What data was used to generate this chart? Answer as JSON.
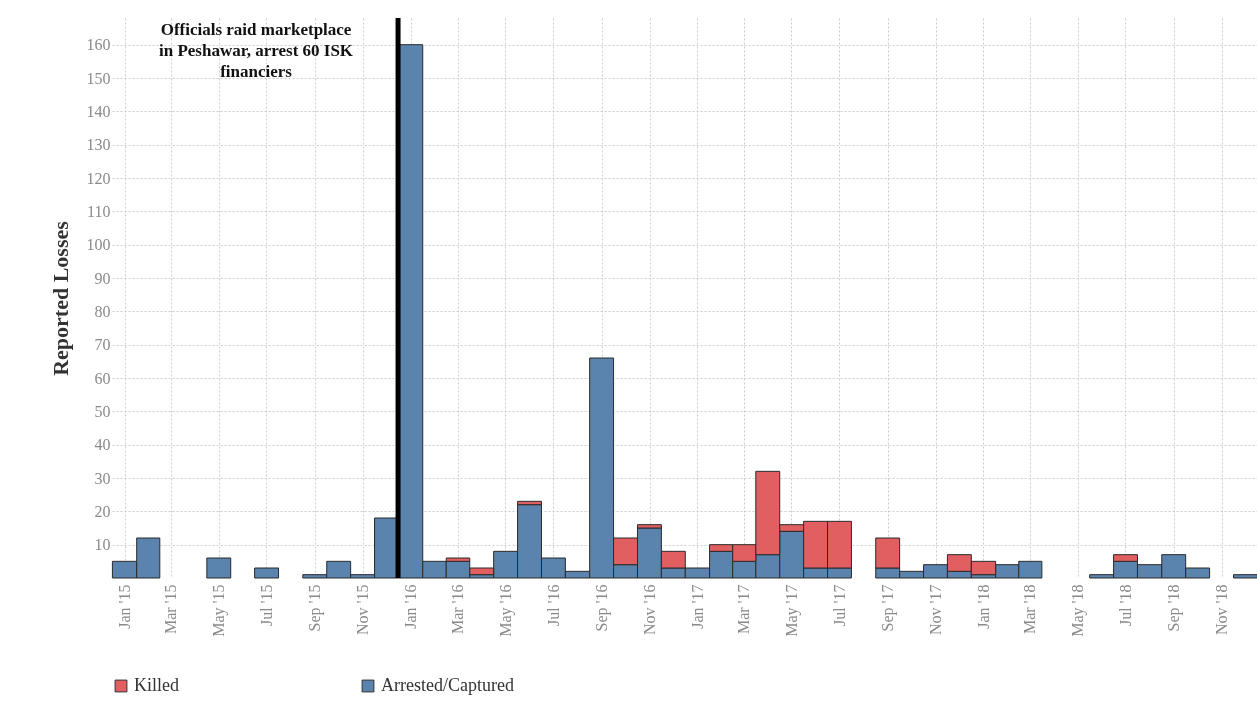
{
  "chart_data": {
    "type": "bar",
    "stacked": true,
    "x": [
      "2015-01",
      "2015-02",
      "2015-03",
      "2015-04",
      "2015-05",
      "2015-06",
      "2015-07",
      "2015-08",
      "2015-09",
      "2015-10",
      "2015-11",
      "2015-12",
      "2016-01",
      "2016-02",
      "2016-03",
      "2016-04",
      "2016-05",
      "2016-06",
      "2016-07",
      "2016-08",
      "2016-09",
      "2016-10",
      "2016-11",
      "2016-12",
      "2017-01",
      "2017-02",
      "2017-03",
      "2017-04",
      "2017-05",
      "2017-06",
      "2017-07",
      "2017-08",
      "2017-09",
      "2017-10",
      "2017-11",
      "2017-12",
      "2018-01",
      "2018-02",
      "2018-03",
      "2018-04",
      "2018-05",
      "2018-06",
      "2018-07",
      "2018-08",
      "2018-09",
      "2018-10",
      "2018-11",
      "2018-12"
    ],
    "series": [
      {
        "name": "Arrested/Captured",
        "color": "#5a83ad",
        "values": [
          5,
          12,
          null,
          null,
          6,
          null,
          3,
          null,
          1,
          5,
          1,
          18,
          160,
          5,
          5,
          1,
          8,
          22,
          6,
          2,
          66,
          4,
          15,
          3,
          3,
          8,
          5,
          7,
          14,
          3,
          3,
          null,
          3,
          2,
          4,
          2,
          1,
          4,
          5,
          null,
          null,
          1,
          5,
          4,
          7,
          3,
          null,
          1
        ]
      },
      {
        "name": "Killed",
        "color": "#e15f61",
        "values": [
          null,
          null,
          null,
          null,
          null,
          null,
          null,
          null,
          null,
          null,
          null,
          null,
          null,
          null,
          1,
          2,
          null,
          1,
          null,
          null,
          null,
          8,
          1,
          5,
          null,
          2,
          5,
          25,
          2,
          14,
          14,
          null,
          9,
          null,
          null,
          5,
          4,
          null,
          null,
          null,
          null,
          null,
          2,
          null,
          null,
          null,
          null,
          null
        ]
      }
    ],
    "ylabel": "Reported Losses",
    "xlim": [
      "2014-12-16",
      "2018-12-16"
    ],
    "xticks": [
      {
        "value": "2015-01",
        "label": "Jan '15"
      },
      {
        "value": "2015-03",
        "label": "Mar '15"
      },
      {
        "value": "2015-05",
        "label": "May '15"
      },
      {
        "value": "2015-07",
        "label": "Jul '15"
      },
      {
        "value": "2015-09",
        "label": "Sep '15"
      },
      {
        "value": "2015-11",
        "label": "Nov '15"
      },
      {
        "value": "2016-01",
        "label": "Jan '16"
      },
      {
        "value": "2016-03",
        "label": "Mar '16"
      },
      {
        "value": "2016-05",
        "label": "May '16"
      },
      {
        "value": "2016-07",
        "label": "Jul '16"
      },
      {
        "value": "2016-09",
        "label": "Sep '16"
      },
      {
        "value": "2016-11",
        "label": "Nov '16"
      },
      {
        "value": "2017-01",
        "label": "Jan '17"
      },
      {
        "value": "2017-03",
        "label": "Mar '17"
      },
      {
        "value": "2017-05",
        "label": "May '17"
      },
      {
        "value": "2017-07",
        "label": "Jul '17"
      },
      {
        "value": "2017-09",
        "label": "Sep '17"
      },
      {
        "value": "2017-11",
        "label": "Nov '17"
      },
      {
        "value": "2018-01",
        "label": "Jan '18"
      },
      {
        "value": "2018-03",
        "label": "Mar '18"
      },
      {
        "value": "2018-05",
        "label": "May '18"
      },
      {
        "value": "2018-07",
        "label": "Jul '18"
      },
      {
        "value": "2018-09",
        "label": "Sep '18"
      },
      {
        "value": "2018-11",
        "label": "Nov '18"
      }
    ],
    "ylim": [
      0,
      168
    ],
    "yticks": [
      10,
      20,
      30,
      40,
      50,
      60,
      70,
      80,
      90,
      100,
      110,
      120,
      130,
      140,
      150,
      160
    ],
    "ref_lines": [
      {
        "axis": "x",
        "value": "2015-12-16",
        "label": "Officials raid marketplace in Peshawar, arrest 60 ISK financiers",
        "color": "#000000"
      }
    ],
    "grid": true,
    "legend": "bottom left"
  }
}
